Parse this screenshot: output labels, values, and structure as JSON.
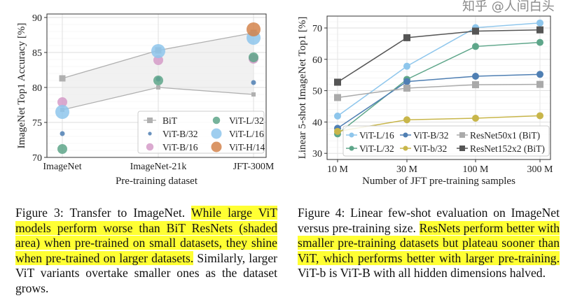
{
  "chart_data": [
    {
      "type": "scatter",
      "xlabel": "Pre-training dataset",
      "ylabel": "ImageNet Top1 Accuracy [%]",
      "categories": [
        "ImageNet",
        "ImageNet-21k",
        "JFT-300M"
      ],
      "ylim": [
        70,
        90
      ],
      "yticks": [
        70,
        75,
        80,
        85,
        90
      ],
      "grid": true,
      "legend": "bottom-right",
      "shaded_band": {
        "name": "BiT",
        "upper": [
          81.3,
          85.3,
          87.8
        ],
        "lower": [
          76.8,
          80.0,
          79.0
        ],
        "color": "#b0b0b0"
      },
      "series": [
        {
          "name": "ViT-B/32",
          "values": [
            73.4,
            81.2,
            80.7
          ],
          "color": "#4f7fb3",
          "size": 1
        },
        {
          "name": "ViT-B/16",
          "values": [
            77.9,
            83.9,
            84.1
          ],
          "color": "#d59bc8",
          "size": 2
        },
        {
          "name": "ViT-L/32",
          "values": [
            71.2,
            81.0,
            84.3
          ],
          "color": "#5ea68a",
          "size": 2
        },
        {
          "name": "ViT-L/16",
          "values": [
            76.5,
            85.2,
            87.1
          ],
          "color": "#8ec6ec",
          "size": 3
        },
        {
          "name": "ViT-H/14",
          "values": [
            null,
            null,
            88.3
          ],
          "color": "#d4844c",
          "size": 3
        }
      ]
    },
    {
      "type": "line",
      "xlabel": "Number of JFT pre-training samples",
      "ylabel": "Linear 5-shot ImageNet Top1 [%]",
      "x": [
        10,
        30,
        100,
        300
      ],
      "xticklabels": [
        "10 M",
        "30 M",
        "100 M",
        "300 M"
      ],
      "xscale": "log",
      "ylim": [
        28,
        74
      ],
      "yticks": [
        30,
        40,
        50,
        60,
        70
      ],
      "grid": true,
      "legend": "bottom",
      "series": [
        {
          "name": "ViT-L/16",
          "values": [
            41.9,
            57.8,
            70.1,
            71.6
          ],
          "color": "#8ec6ec",
          "marker": "circle"
        },
        {
          "name": "ViT-L/32",
          "values": [
            36.2,
            53.6,
            64.1,
            65.4
          ],
          "color": "#5ea68a",
          "marker": "circle"
        },
        {
          "name": "ViT-B/32",
          "values": [
            38.0,
            52.9,
            54.6,
            55.2
          ],
          "color": "#4f7fb3",
          "marker": "circle"
        },
        {
          "name": "ViT-b/32",
          "values": [
            37.0,
            40.7,
            41.2,
            42.0
          ],
          "color": "#c8b64a",
          "marker": "circle"
        },
        {
          "name": "ResNet50x1 (BiT)",
          "values": [
            47.8,
            50.8,
            51.9,
            52.0
          ],
          "color": "#aaaaaa",
          "marker": "square"
        },
        {
          "name": "ResNet152x2 (BiT)",
          "values": [
            52.7,
            66.9,
            69.0,
            69.4
          ],
          "color": "#555555",
          "marker": "square"
        }
      ]
    }
  ],
  "captions": {
    "fig3": {
      "plain_start": "Figure 3:  Transfer to ImageNet. ",
      "highlight": "While large ViT models perform worse than BiT ResNets (shaded area) when pre-trained on small datasets, they shine when pre-trained on larger datasets.",
      "plain_end": " Similarly, larger ViT variants overtake smaller ones as the dataset grows."
    },
    "fig4": {
      "plain_start": "Figure 4: Linear few-shot evaluation on ImageNet versus pre-training size. ",
      "highlight": "ResNets perform better with smaller pre-training datasets but plateau sooner than ViT, which performs better with larger pre-training.",
      "plain_end": " ViT-b is ViT-B with all hidden dimensions halved."
    }
  },
  "watermark": "知乎 @人间白头"
}
